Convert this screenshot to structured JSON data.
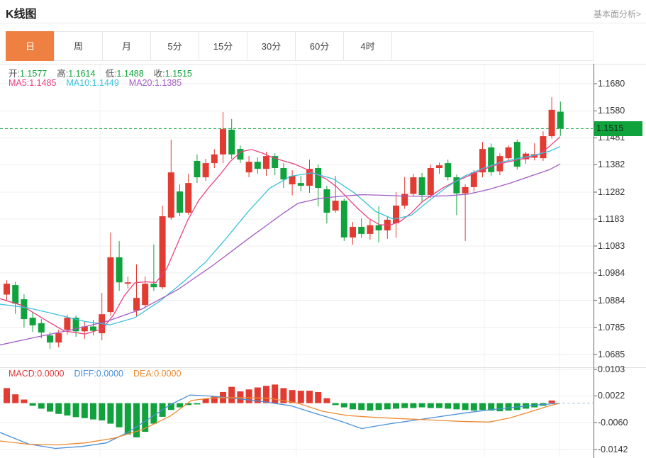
{
  "header": {
    "title": "K线图",
    "link": "基本面分析>"
  },
  "tabs": [
    {
      "label": "日",
      "active": true
    },
    {
      "label": "周",
      "active": false
    },
    {
      "label": "月",
      "active": false
    },
    {
      "label": "5分",
      "active": false
    },
    {
      "label": "15分",
      "active": false
    },
    {
      "label": "30分",
      "active": false
    },
    {
      "label": "60分",
      "active": false
    },
    {
      "label": "4时",
      "active": false
    }
  ],
  "readouts": {
    "ohlc": [
      {
        "label": "开:",
        "value": "1.1577"
      },
      {
        "label": "高:",
        "value": "1.1614"
      },
      {
        "label": "低:",
        "value": "1.1488"
      },
      {
        "label": "收:",
        "value": "1.1515"
      }
    ],
    "ma": [
      {
        "label": "MA5:",
        "value": "1.1485",
        "color": "#ea4080"
      },
      {
        "label": "MA10:",
        "value": "1.1449",
        "color": "#39c2dc"
      },
      {
        "label": "MA20:",
        "value": "1.1385",
        "color": "#a25cc4"
      }
    ],
    "macd": [
      {
        "label": "MACD:",
        "value": "0.0000",
        "color": "#e0393a"
      },
      {
        "label": "DIFF:",
        "value": "0.0000",
        "color": "#4a90d9"
      },
      {
        "label": "DEA:",
        "value": "0.0000",
        "color": "#ee8a30"
      }
    ]
  },
  "price_badge": {
    "value": "1.1515",
    "bg": "#10a23c",
    "text": "#0d2b15"
  },
  "colors": {
    "up": "#e23b32",
    "down": "#10a23c",
    "tab_active_bg": "#ee8142",
    "grid": "#ededed",
    "vgrid": "#f0f0f0",
    "axis_line": "#666",
    "axis_text": "#333",
    "value_green": "#10a23c",
    "dashed_price": "#10a23c",
    "dashed_zero": "#9cc3ea",
    "ma5": "#ea4080",
    "ma10": "#39c2dc",
    "ma20": "#a25cc4",
    "diff": "#4a90d9",
    "dea": "#ee8a30"
  },
  "chart_data": [
    {
      "type": "candlestick",
      "title": "K线图",
      "period": "日",
      "ylim": [
        1.0685,
        1.168
      ],
      "y_ticks": [
        "1.1680",
        "1.1580",
        "1.1481",
        "1.1382",
        "1.1282",
        "1.1183",
        "1.1083",
        "1.0984",
        "1.0884",
        "1.0785",
        "1.0685"
      ],
      "last_price": 1.1515,
      "last_ohlc": {
        "open": 1.1577,
        "high": 1.1614,
        "low": 1.1488,
        "close": 1.1515
      },
      "note": "candles are [open,high,low,close] oldest to newest; red = up, green = down",
      "candles": [
        [
          1.0905,
          1.0958,
          1.0883,
          1.0945
        ],
        [
          1.094,
          1.0951,
          1.0834,
          1.0872
        ],
        [
          1.0888,
          1.0906,
          1.0784,
          1.0815
        ],
        [
          1.082,
          1.0841,
          1.0768,
          1.0792
        ],
        [
          1.08,
          1.0815,
          1.0745,
          1.0766
        ],
        [
          1.0755,
          1.0768,
          1.0706,
          1.0729
        ],
        [
          1.0729,
          1.0776,
          1.0711,
          1.0763
        ],
        [
          1.0776,
          1.0831,
          1.0758,
          1.082
        ],
        [
          1.082,
          1.0828,
          1.075,
          1.077
        ],
        [
          1.077,
          1.0805,
          1.0742,
          1.0788
        ],
        [
          1.0788,
          1.0812,
          1.0755,
          1.0772
        ],
        [
          1.0763,
          1.0911,
          1.0737,
          1.0833
        ],
        [
          1.0841,
          1.1133,
          1.0828,
          1.1042
        ],
        [
          1.1042,
          1.1102,
          1.0919,
          1.095
        ],
        [
          1.0945,
          1.0971,
          1.0927,
          1.095
        ],
        [
          1.0846,
          1.1016,
          1.0826,
          1.0893
        ],
        [
          1.0867,
          1.0971,
          1.0854,
          1.0945
        ],
        [
          1.0945,
          1.1089,
          1.0919,
          1.0932
        ],
        [
          1.0932,
          1.1232,
          1.0925,
          1.1193
        ],
        [
          1.1188,
          1.1474,
          1.118,
          1.1354
        ],
        [
          1.1284,
          1.131,
          1.1193,
          1.1206
        ],
        [
          1.1206,
          1.1349,
          1.1198,
          1.1315
        ],
        [
          1.1396,
          1.142,
          1.1315,
          1.1336
        ],
        [
          1.1336,
          1.1404,
          1.1323,
          1.1388
        ],
        [
          1.1388,
          1.144,
          1.137,
          1.142
        ],
        [
          1.142,
          1.1576,
          1.1388,
          1.1513
        ],
        [
          1.1511,
          1.155,
          1.1404,
          1.142
        ],
        [
          1.144,
          1.1453,
          1.1388,
          1.1401
        ],
        [
          1.1354,
          1.1414,
          1.1336,
          1.1393
        ],
        [
          1.1393,
          1.1409,
          1.1349,
          1.1367
        ],
        [
          1.1367,
          1.143,
          1.1341,
          1.1414
        ],
        [
          1.1414,
          1.1424,
          1.1344,
          1.137
        ],
        [
          1.137,
          1.1388,
          1.1297,
          1.1328
        ],
        [
          1.131,
          1.1362,
          1.127,
          1.1341
        ],
        [
          1.1315,
          1.1341,
          1.1284,
          1.1305
        ],
        [
          1.1305,
          1.1401,
          1.1279,
          1.1367
        ],
        [
          1.137,
          1.1383,
          1.1229,
          1.1297
        ],
        [
          1.1292,
          1.1305,
          1.1167,
          1.1206
        ],
        [
          1.1214,
          1.1341,
          1.1206,
          1.125
        ],
        [
          1.125,
          1.1258,
          1.1102,
          1.1115
        ],
        [
          1.1115,
          1.1172,
          1.1089,
          1.1154
        ],
        [
          1.1154,
          1.1185,
          1.1114,
          1.1128
        ],
        [
          1.1128,
          1.118,
          1.1107,
          1.116
        ],
        [
          1.116,
          1.1229,
          1.1096,
          1.1141
        ],
        [
          1.1141,
          1.119,
          1.111,
          1.118
        ],
        [
          1.1167,
          1.1281,
          1.1114,
          1.1232
        ],
        [
          1.1232,
          1.1337,
          1.122,
          1.1275
        ],
        [
          1.1275,
          1.1349,
          1.1266,
          1.1336
        ],
        [
          1.1336,
          1.1352,
          1.1245,
          1.1271
        ],
        [
          1.1271,
          1.1383,
          1.126,
          1.137
        ],
        [
          1.137,
          1.139,
          1.1349,
          1.138
        ],
        [
          1.1388,
          1.1401,
          1.1324,
          1.1336
        ],
        [
          1.1336,
          1.1346,
          1.1197,
          1.1277
        ],
        [
          1.1277,
          1.131,
          1.1102,
          1.13
        ],
        [
          1.13,
          1.1362,
          1.1284,
          1.1354
        ],
        [
          1.1354,
          1.1466,
          1.1336,
          1.144
        ],
        [
          1.1446,
          1.146,
          1.1342,
          1.1355
        ],
        [
          1.1358,
          1.1424,
          1.1344,
          1.1414
        ],
        [
          1.1406,
          1.1453,
          1.1396,
          1.1446
        ],
        [
          1.1466,
          1.1475,
          1.1365,
          1.1375
        ],
        [
          1.1402,
          1.143,
          1.1386,
          1.1423
        ],
        [
          1.1408,
          1.1461,
          1.1398,
          1.1421
        ],
        [
          1.1406,
          1.1505,
          1.1396,
          1.1487
        ],
        [
          1.1487,
          1.163,
          1.1478,
          1.1584
        ],
        [
          1.1577,
          1.1614,
          1.1488,
          1.1515
        ]
      ],
      "ma5": {
        "name": "MA5",
        "value": 1.1485,
        "points": [
          [
            0,
            1.089
          ],
          [
            30,
            1.0866
          ],
          [
            60,
            1.0818
          ],
          [
            90,
            1.0772
          ],
          [
            120,
            1.076
          ],
          [
            145,
            1.078
          ],
          [
            160,
            1.083
          ],
          [
            175,
            1.09
          ],
          [
            190,
            1.0948
          ],
          [
            205,
            1.0952
          ],
          [
            220,
            1.095
          ],
          [
            235,
            1.1
          ],
          [
            250,
            1.109
          ],
          [
            265,
            1.118
          ],
          [
            280,
            1.125
          ],
          [
            295,
            1.13
          ],
          [
            310,
            1.1345
          ],
          [
            325,
            1.1395
          ],
          [
            340,
            1.143
          ],
          [
            355,
            1.1438
          ],
          [
            370,
            1.1425
          ],
          [
            385,
            1.1408
          ],
          [
            400,
            1.1396
          ],
          [
            415,
            1.1385
          ],
          [
            430,
            1.1368
          ],
          [
            445,
            1.1348
          ],
          [
            460,
            1.133
          ],
          [
            475,
            1.13
          ],
          [
            490,
            1.126
          ],
          [
            505,
            1.122
          ],
          [
            520,
            1.1185
          ],
          [
            535,
            1.1162
          ],
          [
            550,
            1.116
          ],
          [
            565,
            1.1175
          ],
          [
            580,
            1.1205
          ],
          [
            595,
            1.1245
          ],
          [
            610,
            1.1272
          ],
          [
            625,
            1.1298
          ],
          [
            640,
            1.1318
          ],
          [
            655,
            1.1335
          ],
          [
            670,
            1.1352
          ],
          [
            685,
            1.1368
          ],
          [
            700,
            1.1382
          ],
          [
            715,
            1.1392
          ],
          [
            730,
            1.14
          ],
          [
            745,
            1.1408
          ],
          [
            760,
            1.142
          ],
          [
            775,
            1.145
          ],
          [
            790,
            1.1485
          ]
        ]
      },
      "ma10": {
        "name": "MA10",
        "value": 1.1449,
        "points": [
          [
            0,
            1.087
          ],
          [
            40,
            1.0856
          ],
          [
            80,
            1.0832
          ],
          [
            120,
            1.0806
          ],
          [
            155,
            1.0794
          ],
          [
            190,
            1.082
          ],
          [
            225,
            1.088
          ],
          [
            260,
            1.0955
          ],
          [
            290,
            1.1025
          ],
          [
            320,
            1.1115
          ],
          [
            350,
            1.121
          ],
          [
            380,
            1.1295
          ],
          [
            410,
            1.134
          ],
          [
            440,
            1.1352
          ],
          [
            470,
            1.133
          ],
          [
            500,
            1.1278
          ],
          [
            530,
            1.121
          ],
          [
            555,
            1.1182
          ],
          [
            580,
            1.1196
          ],
          [
            605,
            1.125
          ],
          [
            630,
            1.13
          ],
          [
            655,
            1.134
          ],
          [
            680,
            1.1368
          ],
          [
            705,
            1.139
          ],
          [
            730,
            1.1405
          ],
          [
            755,
            1.1418
          ],
          [
            775,
            1.1432
          ],
          [
            790,
            1.1449
          ]
        ]
      },
      "ma20": {
        "name": "MA20",
        "value": 1.1385,
        "points": [
          [
            0,
            1.072
          ],
          [
            50,
            1.0748
          ],
          [
            100,
            1.0775
          ],
          [
            150,
            1.0806
          ],
          [
            200,
            1.0852
          ],
          [
            250,
            1.0922
          ],
          [
            300,
            1.1012
          ],
          [
            350,
            1.111
          ],
          [
            400,
            1.1205
          ],
          [
            420,
            1.124
          ],
          [
            450,
            1.1258
          ],
          [
            480,
            1.1266
          ],
          [
            510,
            1.1272
          ],
          [
            540,
            1.127
          ],
          [
            570,
            1.1267
          ],
          [
            600,
            1.1266
          ],
          [
            630,
            1.1268
          ],
          [
            660,
            1.1274
          ],
          [
            690,
            1.1292
          ],
          [
            720,
            1.1315
          ],
          [
            750,
            1.1342
          ],
          [
            775,
            1.1364
          ],
          [
            790,
            1.1385
          ]
        ]
      },
      "grid": true,
      "legend_position": "top-left"
    },
    {
      "type": "bar",
      "name": "MACD",
      "ylim": [
        -0.0142,
        0.0103
      ],
      "y_ticks": [
        "0.0103",
        "0.0022",
        "-0.0060",
        "-0.0142"
      ],
      "readout": {
        "MACD": 0.0,
        "DIFF": 0.0,
        "DEA": 0.0
      },
      "values": [
        0.0046,
        0.0027,
        0.0011,
        -0.0008,
        -0.0017,
        -0.0026,
        -0.0033,
        -0.0038,
        -0.0043,
        -0.0046,
        -0.005,
        -0.0053,
        -0.0063,
        -0.0074,
        -0.0096,
        -0.0105,
        -0.0088,
        -0.0063,
        -0.0042,
        -0.0021,
        -0.0013,
        -0.0006,
        -0.0004,
        0.0013,
        0.0021,
        0.0034,
        0.005,
        0.0036,
        0.0042,
        0.0048,
        0.0053,
        0.0057,
        0.0046,
        0.004,
        0.0038,
        0.0038,
        0.0034,
        0.0015,
        -0.0006,
        -0.0013,
        -0.0019,
        -0.0021,
        -0.0023,
        -0.0021,
        -0.0019,
        -0.0017,
        -0.0015,
        -0.0015,
        -0.0013,
        -0.0015,
        -0.0015,
        -0.0017,
        -0.0019,
        -0.0021,
        -0.0023,
        -0.0021,
        -0.0023,
        -0.0025,
        -0.0023,
        -0.0021,
        -0.0017,
        -0.0013,
        -0.0008,
        0.0008,
        0.0
      ],
      "diff_line": [
        [
          0,
          -0.009
        ],
        [
          40,
          -0.0125
        ],
        [
          78,
          -0.0139
        ],
        [
          115,
          -0.0133
        ],
        [
          150,
          -0.0122
        ],
        [
          180,
          -0.009
        ],
        [
          210,
          -0.0048
        ],
        [
          240,
          -0.0005
        ],
        [
          268,
          0.0025
        ],
        [
          295,
          0.0022
        ],
        [
          330,
          0.0015
        ],
        [
          370,
          0.0005
        ],
        [
          410,
          -0.0008
        ],
        [
          445,
          -0.0032
        ],
        [
          480,
          -0.0055
        ],
        [
          510,
          -0.0078
        ],
        [
          545,
          -0.0065
        ],
        [
          580,
          -0.0054
        ],
        [
          615,
          -0.0043
        ],
        [
          650,
          -0.0032
        ],
        [
          685,
          -0.0022
        ],
        [
          720,
          -0.0014
        ],
        [
          755,
          -0.0006
        ],
        [
          790,
          0.0
        ]
      ],
      "dea_line": [
        [
          0,
          -0.0116
        ],
        [
          40,
          -0.0126
        ],
        [
          80,
          -0.0128
        ],
        [
          120,
          -0.0122
        ],
        [
          160,
          -0.0108
        ],
        [
          200,
          -0.0082
        ],
        [
          240,
          -0.004
        ],
        [
          270,
          0.0008
        ],
        [
          300,
          0.0016
        ],
        [
          340,
          0.0017
        ],
        [
          380,
          0.0015
        ],
        [
          420,
          0.0
        ],
        [
          455,
          -0.0025
        ],
        [
          490,
          -0.0038
        ],
        [
          530,
          -0.0044
        ],
        [
          570,
          -0.0048
        ],
        [
          610,
          -0.0052
        ],
        [
          650,
          -0.0056
        ],
        [
          690,
          -0.0058
        ],
        [
          720,
          -0.0045
        ],
        [
          750,
          -0.0025
        ],
        [
          775,
          -0.0008
        ],
        [
          790,
          0.0
        ]
      ]
    }
  ]
}
